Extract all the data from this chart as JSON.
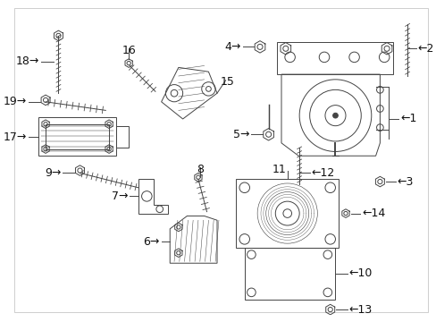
{
  "bg_color": "#ffffff",
  "lc": "#444444",
  "lw": 0.7,
  "font_size": 9,
  "font_color": "#111111"
}
